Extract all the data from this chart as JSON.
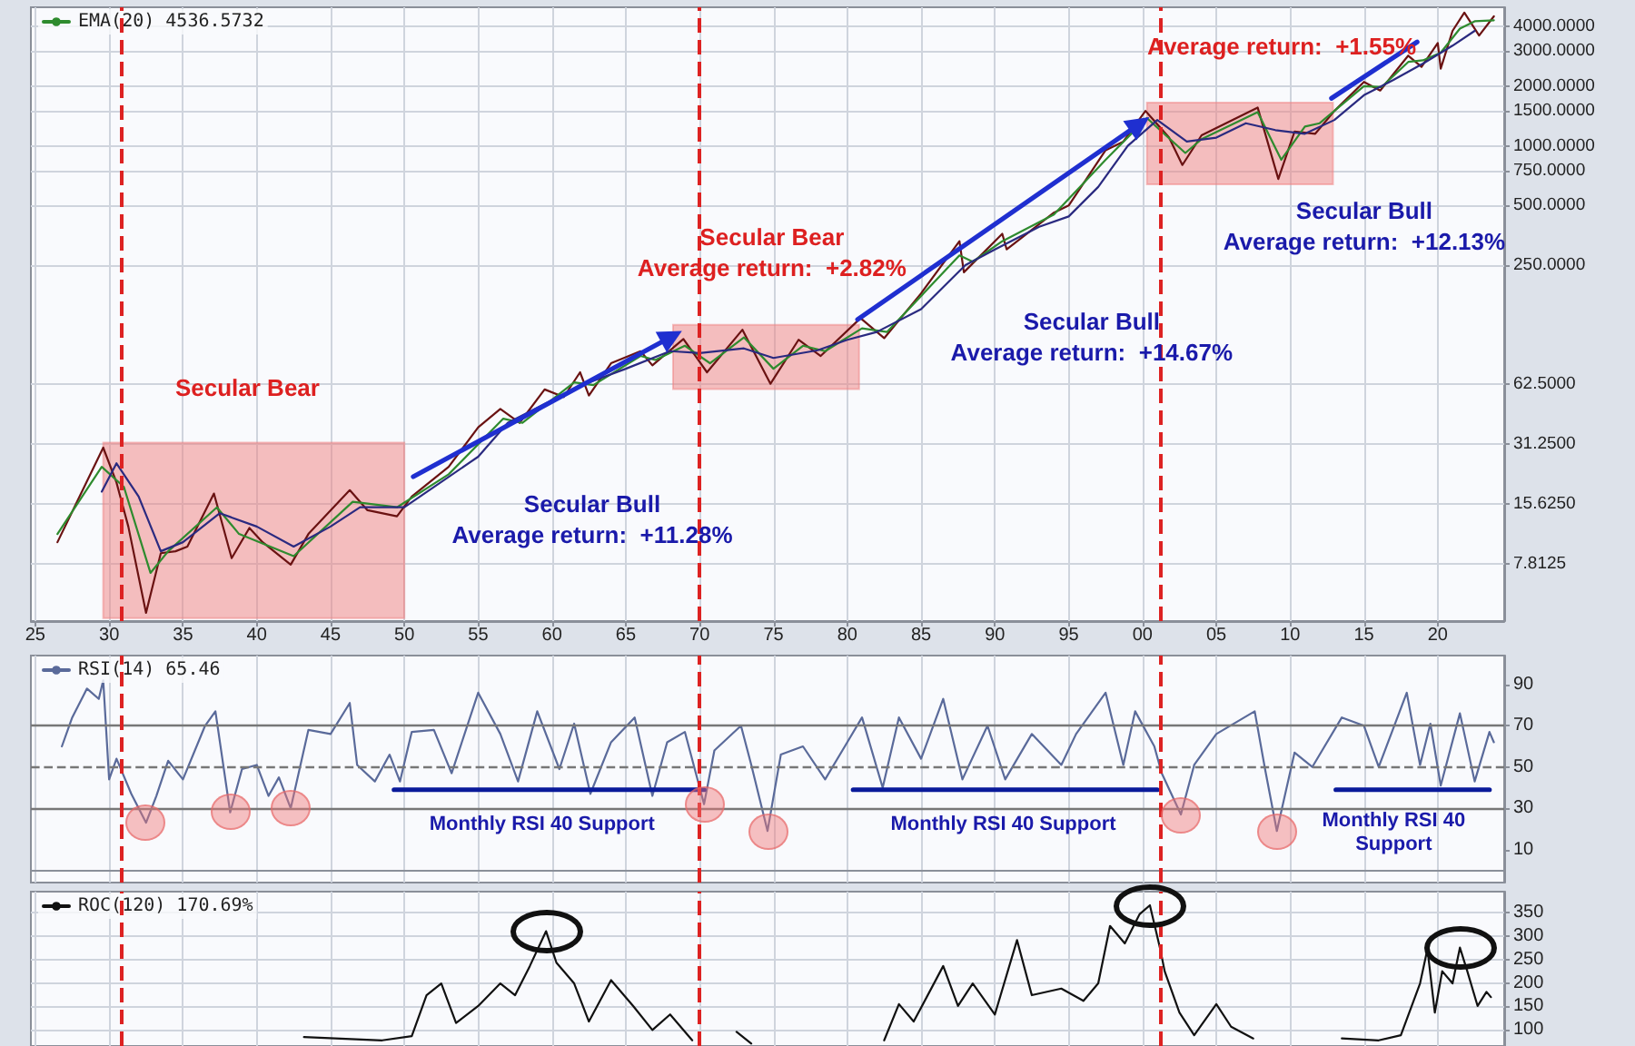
{
  "chart_data": [
    {
      "type": "line",
      "log": "y",
      "grid": true,
      "legend": "top left",
      "marker": "none",
      "xlim": [
        1924.7,
        2024.5
      ],
      "xticks": [
        {
          "value": 1925,
          "label": "25"
        },
        {
          "value": 1930,
          "label": "30"
        },
        {
          "value": 1935,
          "label": "35"
        },
        {
          "value": 1940,
          "label": "40"
        },
        {
          "value": 1945,
          "label": "45"
        },
        {
          "value": 1950,
          "label": "50"
        },
        {
          "value": 1955,
          "label": "55"
        },
        {
          "value": 1960,
          "label": "60"
        },
        {
          "value": 1965,
          "label": "65"
        },
        {
          "value": 1970,
          "label": "70"
        },
        {
          "value": 1975,
          "label": "75"
        },
        {
          "value": 1980,
          "label": "80"
        },
        {
          "value": 1985,
          "label": "85"
        },
        {
          "value": 1990,
          "label": "90"
        },
        {
          "value": 1995,
          "label": "95"
        },
        {
          "value": 2000,
          "label": "00"
        },
        {
          "value": 2005,
          "label": "05"
        },
        {
          "value": 2010,
          "label": "10"
        },
        {
          "value": 2015,
          "label": "15"
        },
        {
          "value": 2020,
          "label": "20"
        }
      ],
      "ylim": [
        4,
        5000
      ],
      "yticks": [
        {
          "value": 7.8125,
          "label": "7.8125"
        },
        {
          "value": 15.625,
          "label": "15.6250"
        },
        {
          "value": 31.25,
          "label": "31.2500"
        },
        {
          "value": 62.5,
          "label": "62.5000"
        },
        {
          "value": 250,
          "label": "250.0000"
        },
        {
          "value": 500,
          "label": "500.0000"
        },
        {
          "value": 750,
          "label": "750.0000"
        },
        {
          "value": 1000,
          "label": "1000.0000"
        },
        {
          "value": 1500,
          "label": "1500.0000"
        },
        {
          "value": 2000,
          "label": "2000.0000"
        },
        {
          "value": 3000,
          "label": "3000.0000"
        },
        {
          "value": 4000,
          "label": "4000.0000"
        }
      ],
      "series": [
        {
          "color": "#6a1212",
          "x": [
            1926.5,
            1928,
            1929.6,
            1930.5,
            1931.3,
            1932.5,
            1933.5,
            1934.5,
            1935.3,
            1937.1,
            1938.3,
            1939.5,
            1940.4,
            1942.3,
            1943.5,
            1946.3,
            1947.5,
            1949.5,
            1950.5,
            1953,
            1955,
            1956.5,
            1957.8,
            1959.5,
            1960.8,
            1961.9,
            1962.5,
            1964,
            1966,
            1966.8,
            1968.9,
            1970.5,
            1972.9,
            1974.8,
            1976.7,
            1978.2,
            1980.9,
            1982.5,
            1985,
            1987.6,
            1987.9,
            1990.5,
            1990.8,
            1994,
            1995,
            1997.5,
            1998.7,
            2000.2,
            2001.8,
            2002.7,
            2004,
            2007.8,
            2009.2,
            2010.3,
            2011.7,
            2013,
            2015,
            2016.1,
            2018,
            2018.9,
            2020,
            2020.2,
            2021,
            2021.8,
            2022.8,
            2023.8
          ],
          "values": [
            10,
            17,
            30,
            20,
            12,
            4.4,
            8.8,
            9,
            9.5,
            17.6,
            8.3,
            11.8,
            10,
            7.7,
            11,
            18.3,
            14.5,
            13.5,
            17,
            24,
            38,
            47,
            40,
            59,
            54,
            72,
            55,
            80,
            92,
            78,
            106,
            72,
            118,
            63,
            105,
            87,
            135,
            107,
            180,
            330,
            230,
            360,
            300,
            460,
            500,
            950,
            1050,
            1500,
            1100,
            800,
            1130,
            1560,
            680,
            1180,
            1150,
            1500,
            2100,
            1900,
            2850,
            2500,
            3300,
            2450,
            3800,
            4700,
            3600,
            4500
          ]
        },
        {
          "name": "EMA(20) 4536.5732",
          "color": "#2e8b2e",
          "x": [
            1926.5,
            1929.5,
            1931,
            1932.8,
            1934,
            1937.3,
            1938.8,
            1942.5,
            1946.5,
            1949.5,
            1953,
            1956.7,
            1958,
            1961.5,
            1962.8,
            1966,
            1967,
            1969,
            1970.7,
            1973,
            1975,
            1977,
            1978.5,
            1981,
            1982.7,
            1987.6,
            1988.5,
            1990.5,
            1994,
            1997.5,
            2000.3,
            2002.9,
            2004,
            2007.8,
            2009.4,
            2011,
            2012,
            2015,
            2016.2,
            2018,
            2019,
            2020.2,
            2021.5,
            2022.5,
            2023.8
          ],
          "values": [
            11,
            24,
            19,
            7,
            9,
            15,
            11,
            8.5,
            16,
            15,
            22,
            42,
            40,
            64,
            62,
            87,
            83,
            98,
            80,
            108,
            75,
            98,
            92,
            120,
            115,
            280,
            260,
            330,
            450,
            850,
            1380,
            920,
            1080,
            1480,
            850,
            1250,
            1300,
            2000,
            1980,
            2650,
            2700,
            2950,
            3900,
            4250,
            4300
          ]
        },
        {
          "color": "#2a2a80",
          "x": [
            1929.5,
            1930.5,
            1932,
            1933.5,
            1935,
            1937.5,
            1940,
            1942.5,
            1945,
            1947,
            1950,
            1952,
            1955,
            1957,
            1960,
            1962,
            1965,
            1968,
            1970,
            1973,
            1975,
            1978,
            1980,
            1982,
            1985,
            1988,
            1990,
            1993,
            1995,
            1997,
            1999,
            2001,
            2003,
            2005,
            2007,
            2009,
            2011,
            2013,
            2015,
            2017,
            2019,
            2021,
            2022.5
          ],
          "values": [
            18,
            25,
            17,
            9,
            10,
            14,
            12,
            9.5,
            12,
            15,
            15,
            19,
            27,
            40,
            52,
            62,
            75,
            92,
            90,
            95,
            85,
            93,
            105,
            115,
            150,
            250,
            300,
            390,
            440,
            620,
            1000,
            1350,
            1050,
            1100,
            1300,
            1200,
            1150,
            1350,
            1800,
            2150,
            2600,
            3200,
            3800
          ]
        },
        {
          "color": "#1f2fd0",
          "marker": "triangle",
          "x": [
            1950.6,
            1968.1
          ],
          "values": [
            21.4,
            109
          ]
        },
        {
          "color": "#1f2fd0",
          "marker": "triangle",
          "x": [
            1980.7,
            1999.8
          ],
          "values": [
            133,
            1290
          ]
        },
        {
          "color": "#1f2fd0",
          "marker": "none",
          "x": [
            2012.8,
            2018.6
          ],
          "values": [
            1737,
            3340
          ]
        }
      ],
      "bands": [
        {
          "axis": "x",
          "from": 1929.6,
          "to": 1950,
          "label": null,
          "color": "#f08080"
        },
        {
          "axis": "x",
          "from": 1968.2,
          "to": 1980.8,
          "label": null,
          "color": "#f08080"
        },
        {
          "axis": "x",
          "from": 2000.3,
          "to": 2012.9,
          "label": null,
          "color": "#f08080"
        }
      ],
      "ref_lines": [
        {
          "axis": "x",
          "value": 1930.8,
          "label": null,
          "color": "#dd2222",
          "line_style": "dashed"
        },
        {
          "axis": "x",
          "value": 1970,
          "label": null,
          "color": "#dd2222",
          "line_style": "dashed"
        },
        {
          "axis": "x",
          "value": 2001.2,
          "label": null,
          "color": "#dd2222",
          "line_style": "dashed"
        }
      ],
      "annotations": [
        "Secular Bear",
        "Secular Bull\nAverage return:  +11.28%",
        "Secular Bear\nAverage return:  +2.82%",
        "Secular Bull\nAverage return:  +14.67%",
        "Average return:  +1.55%",
        "Secular Bull\nAverage return:  +12.13%"
      ]
    },
    {
      "type": "line",
      "grid": "x",
      "legend": "top left",
      "marker": "none",
      "tick_labels": "y",
      "xlim": [
        1924.7,
        2024.5
      ],
      "xticks": [
        {
          "value": 1925,
          "label": null
        },
        {
          "value": 1930,
          "label": null
        },
        {
          "value": 1935,
          "label": null
        },
        {
          "value": 1940,
          "label": null
        },
        {
          "value": 1945,
          "label": null
        },
        {
          "value": 1950,
          "label": null
        },
        {
          "value": 1955,
          "label": null
        },
        {
          "value": 1960,
          "label": null
        },
        {
          "value": 1965,
          "label": null
        },
        {
          "value": 1970,
          "label": null
        },
        {
          "value": 1975,
          "label": null
        },
        {
          "value": 1980,
          "label": null
        },
        {
          "value": 1985,
          "label": null
        },
        {
          "value": 1990,
          "label": null
        },
        {
          "value": 1995,
          "label": null
        },
        {
          "value": 2000,
          "label": null
        },
        {
          "value": 2005,
          "label": null
        },
        {
          "value": 2010,
          "label": null
        },
        {
          "value": 2015,
          "label": null
        },
        {
          "value": 2020,
          "label": null
        }
      ],
      "ylim": [
        -6,
        104
      ],
      "yticks": [
        10,
        30,
        50,
        70,
        90
      ],
      "series": [
        {
          "name": "RSI(14) 65.46",
          "color": "#5a6a9a",
          "x": [
            1926.8,
            1927.5,
            1928.5,
            1929.3,
            1929.6,
            1929.8,
            1930,
            1930.5,
            1931.5,
            1932.5,
            1933.2,
            1934,
            1935,
            1936.5,
            1937.2,
            1938.2,
            1939,
            1940,
            1940.8,
            1941.5,
            1942.3,
            1943.5,
            1945,
            1946.3,
            1946.8,
            1948,
            1949,
            1949.7,
            1950.5,
            1952,
            1953.2,
            1955,
            1956.5,
            1957.7,
            1959,
            1960.5,
            1961.5,
            1962.6,
            1964,
            1965.6,
            1966.8,
            1967.8,
            1969,
            1970.3,
            1971,
            1972.8,
            1973.5,
            1974.6,
            1975.5,
            1977,
            1978.5,
            1980,
            1981,
            1982.4,
            1983.5,
            1985,
            1986.5,
            1987.8,
            1989.5,
            1990.7,
            1992.5,
            1994.5,
            1995.5,
            1997.5,
            1998.7,
            1999.5,
            2000.8,
            2001.3,
            2002.6,
            2003.5,
            2005,
            2007.6,
            2008.3,
            2009.1,
            2010.3,
            2011.5,
            2013.5,
            2015,
            2016,
            2017.9,
            2018.8,
            2019.5,
            2020.2,
            2021.5,
            2022.5,
            2023.5,
            2023.8
          ],
          "values": [
            60,
            74,
            88,
            83,
            92,
            68,
            44,
            54,
            37,
            23,
            36,
            53,
            44,
            70,
            77,
            28,
            49,
            51,
            36,
            45,
            30,
            68,
            66,
            81,
            51,
            43,
            56,
            43,
            67,
            68,
            47,
            86,
            66,
            43,
            77,
            49,
            71,
            37,
            62,
            74,
            36,
            62,
            67,
            32,
            58,
            70,
            51,
            19,
            56,
            60,
            44,
            62,
            74,
            40,
            74,
            54,
            83,
            44,
            70,
            44,
            66,
            51,
            66,
            86,
            51,
            77,
            60,
            47,
            27,
            51,
            66,
            77,
            49,
            19,
            57,
            50,
            74,
            70,
            50,
            86,
            51,
            71,
            41,
            76,
            43,
            67,
            62
          ]
        },
        {
          "color": "#0a1a9a",
          "marker": "none",
          "x": [
            1949.3,
            1970.3
          ],
          "values": [
            39,
            39
          ]
        },
        {
          "color": "#0a1a9a",
          "marker": "none",
          "x": [
            1980.4,
            2001
          ],
          "values": [
            39,
            39
          ]
        },
        {
          "color": "#0a1a9a",
          "marker": "none",
          "x": [
            2013.1,
            2023.5
          ],
          "values": [
            39,
            39
          ]
        }
      ],
      "ref_lines": [
        {
          "axis": "y",
          "value": 30,
          "label": null,
          "color": "#777777",
          "line_style": "solid"
        },
        {
          "axis": "y",
          "value": 50,
          "label": null,
          "color": "#777777",
          "line_style": "dashed"
        },
        {
          "axis": "y",
          "value": 70,
          "label": null,
          "color": "#777777",
          "line_style": "solid"
        },
        {
          "axis": "x",
          "value": 1930.8,
          "label": null,
          "color": "#dd2222",
          "line_style": "dashed"
        },
        {
          "axis": "x",
          "value": 1970,
          "label": null,
          "color": "#dd2222",
          "line_style": "dashed"
        },
        {
          "axis": "x",
          "value": 2001.2,
          "label": null,
          "color": "#dd2222",
          "line_style": "dashed"
        }
      ],
      "annotations": [
        "Monthly RSI 40 Support",
        "Monthly RSI 40 Support",
        "Monthly RSI 40\nSupport"
      ]
    },
    {
      "type": "line",
      "grid": true,
      "legend": "top left",
      "marker": "none",
      "tick_labels": "y",
      "xlim": [
        1924.7,
        2024.5
      ],
      "xticks": [
        {
          "value": 1925,
          "label": null
        },
        {
          "value": 1930,
          "label": null
        },
        {
          "value": 1935,
          "label": null
        },
        {
          "value": 1940,
          "label": null
        },
        {
          "value": 1945,
          "label": null
        },
        {
          "value": 1950,
          "label": null
        },
        {
          "value": 1955,
          "label": null
        },
        {
          "value": 1960,
          "label": null
        },
        {
          "value": 1965,
          "label": null
        },
        {
          "value": 1970,
          "label": null
        },
        {
          "value": 1975,
          "label": null
        },
        {
          "value": 1980,
          "label": null
        },
        {
          "value": 1985,
          "label": null
        },
        {
          "value": 1990,
          "label": null
        },
        {
          "value": 1995,
          "label": null
        },
        {
          "value": 2000,
          "label": null
        },
        {
          "value": 2005,
          "label": null
        },
        {
          "value": 2010,
          "label": null
        },
        {
          "value": 2015,
          "label": null
        },
        {
          "value": 2020,
          "label": null
        }
      ],
      "ylim": [
        66,
        394
      ],
      "yticks": [
        100,
        150,
        200,
        250,
        300,
        350
      ],
      "series": [
        {
          "name": "ROC(120) 170.69%",
          "color": "#111111",
          "x": [
            1943.2,
            1948.5,
            1950.5,
            1951.5,
            1952.5,
            1953.5,
            1955,
            1956.5,
            1957.5,
            1958.5,
            1959.6,
            1960.3,
            1961.5,
            1962.5,
            1964,
            1965.5,
            1966.8,
            1968,
            1969.5,
            1971,
            1972.5,
            1973.5,
            1978,
            1982.5,
            1983.5,
            1984.5,
            1986.5,
            1987.5,
            1988.5,
            1990,
            1991.5,
            1992.5,
            1994.5,
            1996,
            1997,
            1997.8,
            1998.8,
            1999.8,
            2000.5,
            2001.2,
            2001.5,
            2002.5,
            2003.5,
            2005,
            2006,
            2007.5,
            2010,
            2013.5,
            2016,
            2017.5,
            2018.8,
            2019.3,
            2019.8,
            2020.3,
            2021,
            2021.5,
            2022,
            2022.7,
            2023.3,
            2023.6
          ],
          "values": [
            85,
            78,
            87,
            174,
            199,
            115,
            151,
            199,
            174,
            236,
            310,
            243,
            199,
            118,
            206,
            151,
            100,
            133,
            78,
            null,
            96,
            71,
            null,
            78,
            155,
            118,
            236,
            151,
            199,
            133,
            291,
            174,
            188,
            162,
            199,
            321,
            284,
            346,
            365,
            272,
            225,
            137,
            89,
            155,
            107,
            82,
            null,
            82,
            78,
            89,
            199,
            272,
            137,
            225,
            199,
            275,
            225,
            151,
            181,
            170
          ]
        }
      ],
      "ref_lines": [
        {
          "axis": "x",
          "value": 1930.8,
          "label": null,
          "color": "#dd2222",
          "line_style": "dashed"
        },
        {
          "axis": "x",
          "value": 1970,
          "label": null,
          "color": "#dd2222",
          "line_style": "dashed"
        },
        {
          "axis": "x",
          "value": 2001.2,
          "label": null,
          "color": "#dd2222",
          "line_style": "dashed"
        }
      ]
    }
  ]
}
